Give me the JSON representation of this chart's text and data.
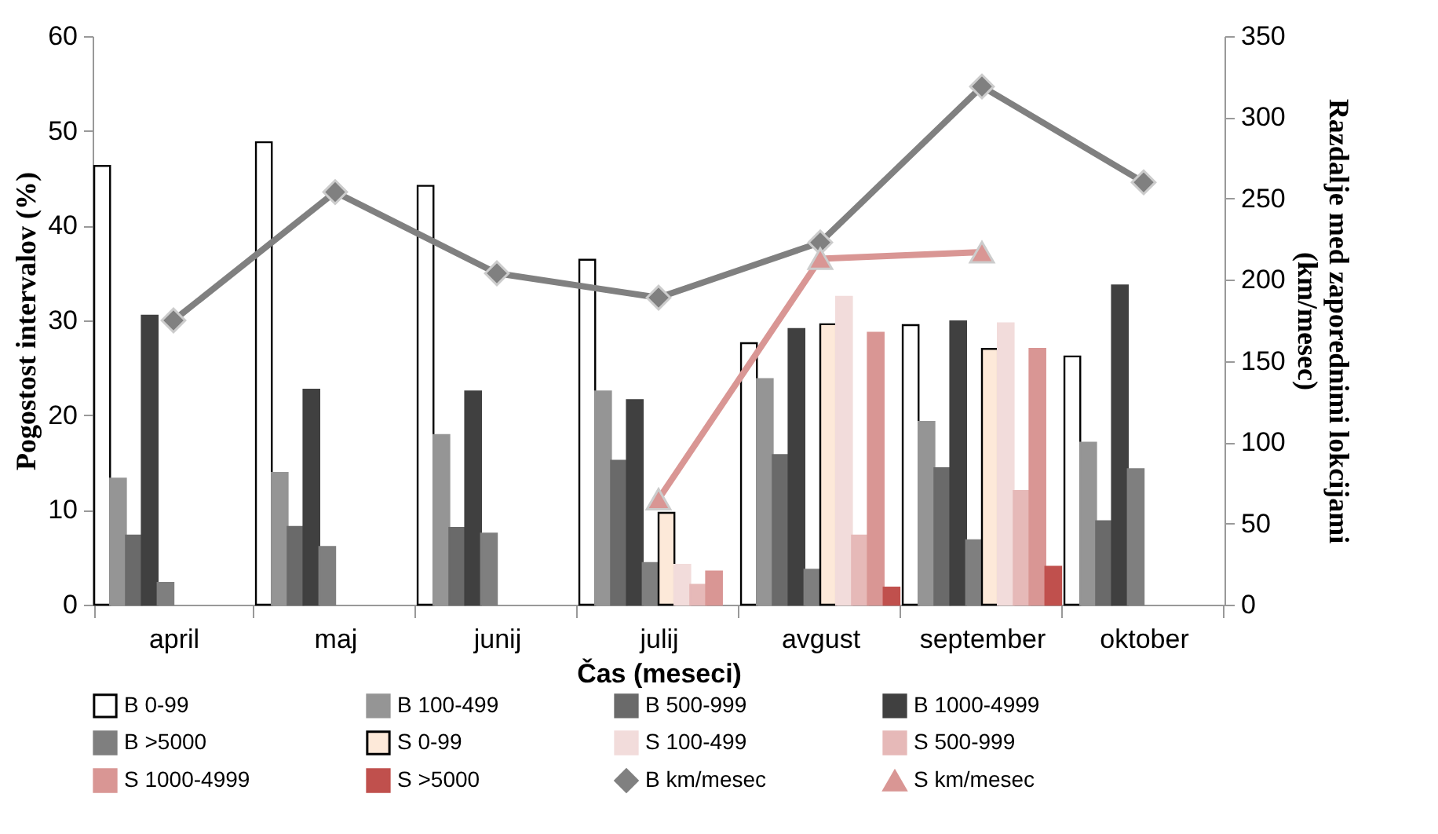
{
  "chart_data": {
    "type": "bar",
    "categories": [
      "april",
      "maj",
      "junij",
      "julij",
      "avgust",
      "september",
      "oktober"
    ],
    "xlabel": "Čas (meseci)",
    "ylabel": "Pogostost intervalov (%)",
    "y2label": "Razdalje med zaporednimi lokcijami\n(km/mesec)",
    "ylim": [
      0,
      60
    ],
    "yticks": [
      0,
      10,
      20,
      30,
      40,
      50,
      60
    ],
    "y2lim": [
      0,
      350
    ],
    "y2ticks": [
      0,
      50,
      100,
      150,
      200,
      250,
      300,
      350
    ],
    "grid": false,
    "legend": "bottom",
    "series": [
      {
        "name": "B 0-99",
        "color": "#ffffff",
        "values": [
          46.3,
          48.8,
          44.2,
          36.4,
          27.6,
          29.5,
          26.2
        ]
      },
      {
        "name": "B 100-499",
        "color": "#959595",
        "values": [
          13.3,
          13.9,
          17.9,
          22.5,
          23.8,
          19.3,
          17.1
        ]
      },
      {
        "name": "B 500-999",
        "color": "#6a6a6a",
        "values": [
          7.3,
          8.2,
          8.1,
          15.2,
          15.8,
          14.4,
          8.8
        ]
      },
      {
        "name": "B 1000-4999",
        "color": "#404040",
        "values": [
          30.5,
          22.7,
          22.5,
          21.6,
          29.1,
          29.9,
          33.7
        ]
      },
      {
        "name": "B >5000",
        "color": "#7f7f7f",
        "values": [
          2.3,
          6.1,
          7.5,
          4.4,
          3.7,
          6.8,
          14.3
        ]
      },
      {
        "name": "S 0-99",
        "color": "#fde9d9",
        "values": [
          null,
          null,
          null,
          9.7,
          29.6,
          27.0,
          null
        ]
      },
      {
        "name": "S 100-499",
        "color": "#f2dcdb",
        "values": [
          null,
          null,
          null,
          4.2,
          32.5,
          29.7,
          null
        ]
      },
      {
        "name": "S 500-999",
        "color": "#e6b9b8",
        "values": [
          null,
          null,
          null,
          2.1,
          7.3,
          12.0,
          null
        ]
      },
      {
        "name": "S 1000-4999",
        "color": "#d99694",
        "values": [
          null,
          null,
          null,
          3.5,
          28.7,
          27.0,
          null
        ]
      },
      {
        "name": "S >5000",
        "color": "#c0504d",
        "values": [
          null,
          null,
          null,
          null,
          1.8,
          4.0,
          null
        ]
      },
      {
        "name": "B km/mesec",
        "type": "line",
        "axis": "y2",
        "marker": "diamond",
        "color": "#808080",
        "values": [
          175,
          254,
          204,
          189,
          223,
          319,
          260
        ]
      },
      {
        "name": "S km/mesec",
        "type": "line",
        "axis": "y2",
        "marker": "triangle",
        "color": "#d99694",
        "values": [
          null,
          null,
          null,
          65,
          213,
          217,
          null
        ]
      }
    ]
  }
}
